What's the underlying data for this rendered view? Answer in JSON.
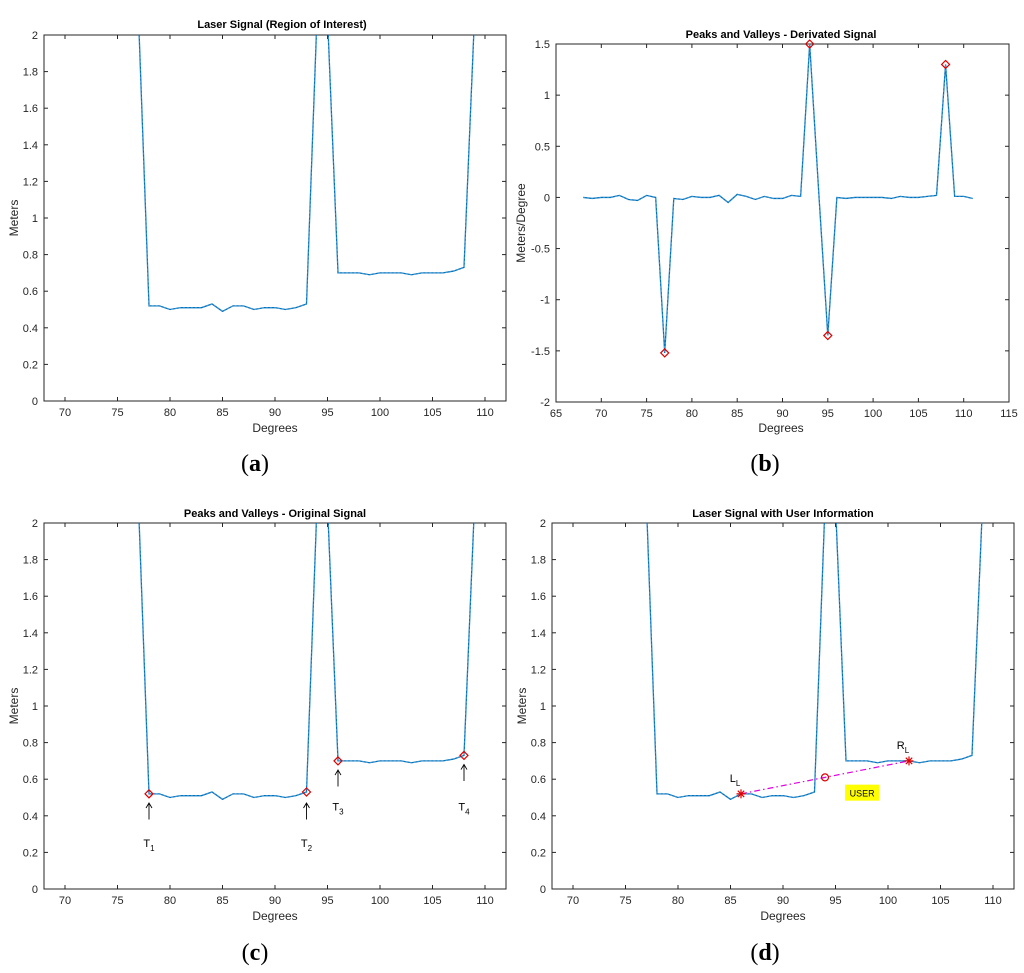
{
  "chart_data": [
    {
      "panel": "(a)",
      "type": "line",
      "title": "Laser Signal (Region of Interest)",
      "xlabel": "Degrees",
      "ylabel": "Meters",
      "xlim": [
        68,
        112
      ],
      "ylim": [
        0,
        2
      ],
      "xticks": [
        70,
        75,
        80,
        85,
        90,
        95,
        100,
        105,
        110
      ],
      "yticks": [
        0,
        0.2,
        0.4,
        0.6,
        0.8,
        1,
        1.2,
        1.4,
        1.6,
        1.8,
        2
      ],
      "x": [
        77,
        78,
        79,
        80,
        81,
        82,
        83,
        84,
        85,
        86,
        87,
        88,
        89,
        90,
        91,
        92,
        93,
        94,
        95,
        96,
        97,
        98,
        99,
        100,
        101,
        102,
        103,
        104,
        105,
        106,
        107,
        108,
        109
      ],
      "y": [
        2.1,
        0.52,
        0.52,
        0.5,
        0.51,
        0.51,
        0.51,
        0.53,
        0.49,
        0.52,
        0.52,
        0.5,
        0.51,
        0.51,
        0.5,
        0.51,
        0.53,
        2.1,
        2.1,
        0.7,
        0.7,
        0.7,
        0.69,
        0.7,
        0.7,
        0.7,
        0.69,
        0.7,
        0.7,
        0.7,
        0.71,
        0.73,
        2.1
      ]
    },
    {
      "panel": "(b)",
      "type": "line",
      "title": "Peaks and Valleys - Derivated Signal",
      "xlabel": "Degrees",
      "ylabel": "Meters/Degree",
      "xlim": [
        65,
        115
      ],
      "ylim": [
        -2,
        1.5
      ],
      "xticks": [
        65,
        70,
        75,
        80,
        85,
        90,
        95,
        100,
        105,
        110,
        115
      ],
      "yticks": [
        -2,
        -1.5,
        -1,
        -0.5,
        0,
        0.5,
        1,
        1.5
      ],
      "x": [
        68,
        69,
        70,
        71,
        72,
        73,
        74,
        75,
        76,
        77,
        78,
        79,
        80,
        81,
        82,
        83,
        84,
        85,
        86,
        87,
        88,
        89,
        90,
        91,
        92,
        93,
        94,
        95,
        96,
        97,
        98,
        99,
        100,
        101,
        102,
        103,
        104,
        105,
        106,
        107,
        108,
        109,
        110,
        111
      ],
      "y": [
        0,
        -0.01,
        0,
        0,
        0.02,
        -0.02,
        -0.03,
        0.02,
        0,
        -1.52,
        -0.01,
        -0.02,
        0.01,
        0,
        0,
        0.02,
        -0.05,
        0.03,
        0.01,
        -0.02,
        0.01,
        -0.01,
        -0.01,
        0.02,
        0.01,
        1.5,
        0.05,
        -1.35,
        0,
        -0.01,
        0,
        0,
        0,
        0,
        -0.01,
        0.01,
        0,
        0,
        0.01,
        0.02,
        1.3,
        0.01,
        0.01,
        -0.01
      ],
      "markers": [
        {
          "x": 77,
          "y": -1.52
        },
        {
          "x": 93,
          "y": 1.5
        },
        {
          "x": 95,
          "y": -1.35
        },
        {
          "x": 108,
          "y": 1.3
        }
      ]
    },
    {
      "panel": "(c)",
      "type": "line",
      "title": "Peaks and Valleys - Original Signal",
      "xlabel": "Degrees",
      "ylabel": "Meters",
      "xlim": [
        68,
        112
      ],
      "ylim": [
        0,
        2
      ],
      "xticks": [
        70,
        75,
        80,
        85,
        90,
        95,
        100,
        105,
        110
      ],
      "yticks": [
        0,
        0.2,
        0.4,
        0.6,
        0.8,
        1,
        1.2,
        1.4,
        1.6,
        1.8,
        2
      ],
      "x": [
        77,
        78,
        79,
        80,
        81,
        82,
        83,
        84,
        85,
        86,
        87,
        88,
        89,
        90,
        91,
        92,
        93,
        94,
        95,
        96,
        97,
        98,
        99,
        100,
        101,
        102,
        103,
        104,
        105,
        106,
        107,
        108,
        109
      ],
      "y": [
        2.1,
        0.52,
        0.52,
        0.5,
        0.51,
        0.51,
        0.51,
        0.53,
        0.49,
        0.52,
        0.52,
        0.5,
        0.51,
        0.51,
        0.5,
        0.51,
        0.53,
        2.1,
        2.1,
        0.7,
        0.7,
        0.7,
        0.69,
        0.7,
        0.7,
        0.7,
        0.69,
        0.7,
        0.7,
        0.7,
        0.71,
        0.73,
        2.1
      ],
      "markers": [
        {
          "x": 78,
          "y": 0.52
        },
        {
          "x": 93,
          "y": 0.53
        },
        {
          "x": 96,
          "y": 0.7
        },
        {
          "x": 108,
          "y": 0.73
        }
      ],
      "annotations": [
        {
          "label": "T",
          "sub": "1",
          "x": 78,
          "arrow_top": 0.47,
          "arrow_bottom": 0.38,
          "text_y": 0.23
        },
        {
          "label": "T",
          "sub": "2",
          "x": 93,
          "arrow_top": 0.47,
          "arrow_bottom": 0.38,
          "text_y": 0.23
        },
        {
          "label": "T",
          "sub": "3",
          "x": 96,
          "arrow_top": 0.65,
          "arrow_bottom": 0.56,
          "text_y": 0.43
        },
        {
          "label": "T",
          "sub": "4",
          "x": 108,
          "arrow_top": 0.68,
          "arrow_bottom": 0.59,
          "text_y": 0.43
        }
      ]
    },
    {
      "panel": "(d)",
      "type": "line",
      "title": "Laser Signal with User Information",
      "xlabel": "Degrees",
      "ylabel": "Meters",
      "xlim": [
        68,
        112
      ],
      "ylim": [
        0,
        2
      ],
      "xticks": [
        70,
        75,
        80,
        85,
        90,
        95,
        100,
        105,
        110
      ],
      "yticks": [
        0,
        0.2,
        0.4,
        0.6,
        0.8,
        1,
        1.2,
        1.4,
        1.6,
        1.8,
        2
      ],
      "x": [
        75,
        76,
        77,
        78,
        79,
        80,
        81,
        82,
        83,
        84,
        85,
        86,
        87,
        88,
        89,
        90,
        91,
        92,
        93,
        94,
        95,
        96,
        97,
        98,
        99,
        100,
        101,
        102,
        103,
        104,
        105,
        106,
        107,
        108,
        109
      ],
      "y": [
        2.1,
        2.1,
        2.1,
        0.52,
        0.52,
        0.5,
        0.51,
        0.51,
        0.51,
        0.53,
        0.49,
        0.52,
        0.52,
        0.5,
        0.51,
        0.51,
        0.5,
        0.51,
        0.53,
        2.1,
        2.1,
        0.7,
        0.7,
        0.7,
        0.69,
        0.7,
        0.7,
        0.7,
        0.69,
        0.7,
        0.7,
        0.7,
        0.71,
        0.73,
        2.1
      ],
      "leg_line": {
        "x1": 86,
        "y1": 0.52,
        "x2": 102,
        "y2": 0.7
      },
      "center_point": {
        "x": 94,
        "y": 0.61
      },
      "left_leg": {
        "label": "L",
        "sub": "L",
        "x": 86,
        "y": 0.52
      },
      "right_leg": {
        "label": "R",
        "sub": "L",
        "x": 102,
        "y": 0.7
      },
      "user_label": "USER",
      "user_box": {
        "x": 96.2,
        "y": 0.51
      }
    }
  ],
  "panel_labels": [
    "(a)",
    "(b)",
    "(c)",
    "(d)"
  ],
  "colors": {
    "line": "#0072BD",
    "marker": "#E00000",
    "leg_line": "#E000E0",
    "user_box": "#FFFF00"
  }
}
